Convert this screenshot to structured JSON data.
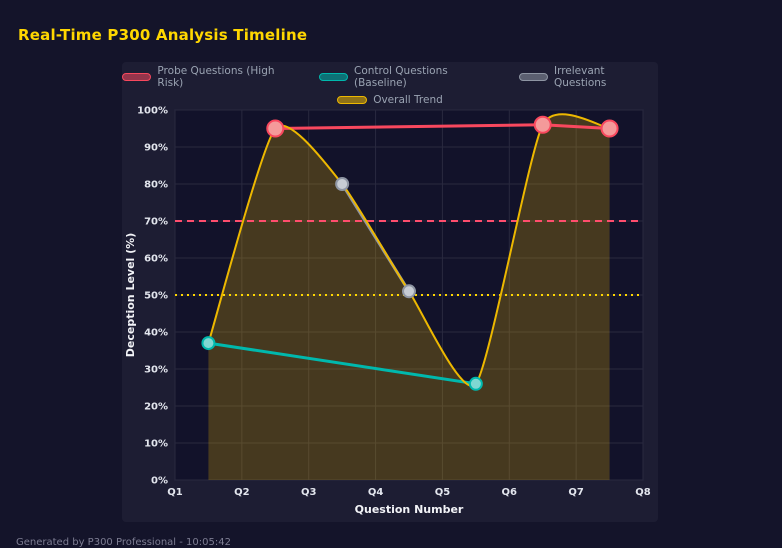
{
  "header": {
    "title": "Real-Time P300 Analysis Timeline",
    "title_color": "#ffd700"
  },
  "footer": {
    "note": "Generated by P300 Professional - 10:05:42"
  },
  "chart_data": {
    "type": "line",
    "title": "Real-Time P300 Analysis Timeline",
    "xlabel": "Question Number",
    "ylabel": "Deception Level (%)",
    "xlim": [
      1,
      8
    ],
    "ylim": [
      0,
      100
    ],
    "grid": true,
    "legend_position": "top",
    "x_tick_values": [
      1,
      2,
      3,
      4,
      5,
      6,
      7,
      8
    ],
    "x_tick_labels": [
      "Q1",
      "Q2",
      "Q3",
      "Q4",
      "Q5",
      "Q6",
      "Q7",
      "Q8"
    ],
    "y_tick_values": [
      0,
      10,
      20,
      30,
      40,
      50,
      60,
      70,
      80,
      90,
      100
    ],
    "y_tick_labels": [
      "0%",
      "10%",
      "20%",
      "30%",
      "40%",
      "50%",
      "60%",
      "70%",
      "80%",
      "90%",
      "100%"
    ],
    "series": [
      {
        "id": "probe",
        "name": "Probe Questions (High Risk)",
        "color": "#f8485e",
        "point_color": "#f49a9a",
        "line_width": 3,
        "point_radius": 8,
        "smooth": false,
        "fill": false,
        "show_points": true,
        "points": [
          [
            2.5,
            95
          ],
          [
            6.5,
            96
          ],
          [
            7.5,
            95
          ]
        ]
      },
      {
        "id": "control",
        "name": "Control Questions (Baseline)",
        "color": "#00b8ad",
        "point_color": "#7fd8d2",
        "line_width": 3,
        "point_radius": 6,
        "smooth": false,
        "fill": false,
        "show_points": true,
        "points": [
          [
            1.5,
            37
          ],
          [
            5.5,
            26
          ]
        ]
      },
      {
        "id": "irrelevant",
        "name": "Irrelevant Questions",
        "color": "#8e95a3",
        "point_color": "#c7ccd4",
        "line_width": 3,
        "point_radius": 6,
        "smooth": false,
        "fill": false,
        "show_points": true,
        "points": [
          [
            3.5,
            80
          ],
          [
            4.5,
            51
          ]
        ]
      },
      {
        "id": "trend",
        "name": "Overall Trend",
        "color": "#edb800",
        "point_color": null,
        "line_width": 2,
        "point_radius": 0,
        "smooth": true,
        "fill": true,
        "fill_color": "rgba(237,184,0,0.24)",
        "show_points": false,
        "points": [
          [
            1.5,
            37
          ],
          [
            2.5,
            95
          ],
          [
            3.5,
            80
          ],
          [
            4.5,
            51
          ],
          [
            5.5,
            26
          ],
          [
            6.5,
            96
          ],
          [
            7.5,
            95
          ]
        ]
      }
    ],
    "thresholds": [
      {
        "id": "high-risk-threshold",
        "value": 70,
        "color": "#ff4d6d",
        "dash": "7 5",
        "width": 2
      },
      {
        "id": "baseline-threshold",
        "value": 50,
        "color": "#ffd700",
        "dash": "2 4",
        "width": 2
      }
    ]
  }
}
